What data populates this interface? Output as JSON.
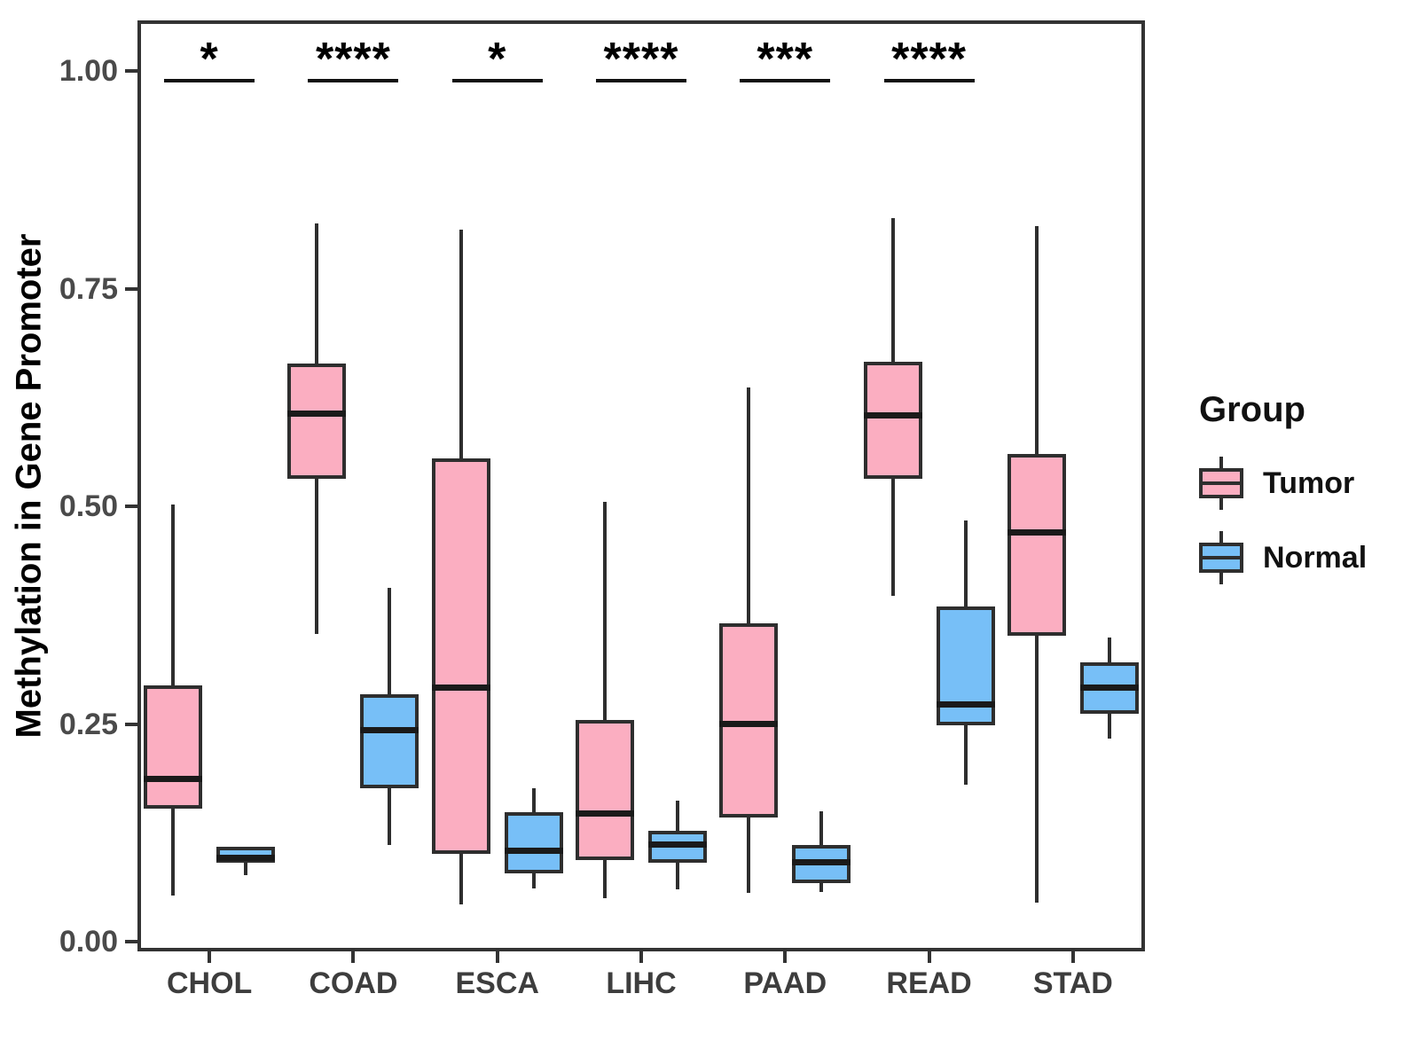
{
  "chart_data": {
    "type": "boxplot",
    "title": "",
    "xlabel": "",
    "ylabel": "Methylation in Gene Promoter",
    "ylim": [
      0,
      1.05
    ],
    "yticks": [
      0,
      0.25,
      0.5,
      0.75,
      1.0
    ],
    "ytick_labels": [
      "0.00",
      "0.25",
      "0.50",
      "0.75",
      "1.00"
    ],
    "categories": [
      "CHOL",
      "COAD",
      "ESCA",
      "LIHC",
      "PAAD",
      "READ",
      "STAD"
    ],
    "grid": "off",
    "panel_border": true,
    "series": [
      {
        "name": "Tumor",
        "color": "#FBAEC1",
        "boxes": [
          {
            "low": 0.053,
            "q1": 0.153,
            "median": 0.187,
            "q3": 0.294,
            "high": 0.502
          },
          {
            "low": 0.353,
            "q1": 0.532,
            "median": 0.606,
            "q3": 0.664,
            "high": 0.825
          },
          {
            "low": 0.043,
            "q1": 0.101,
            "median": 0.292,
            "q3": 0.555,
            "high": 0.818
          },
          {
            "low": 0.05,
            "q1": 0.094,
            "median": 0.147,
            "q3": 0.255,
            "high": 0.505
          },
          {
            "low": 0.056,
            "q1": 0.143,
            "median": 0.25,
            "q3": 0.366,
            "high": 0.636
          },
          {
            "low": 0.397,
            "q1": 0.532,
            "median": 0.604,
            "q3": 0.666,
            "high": 0.831
          },
          {
            "low": 0.045,
            "q1": 0.351,
            "median": 0.47,
            "q3": 0.56,
            "high": 0.822
          }
        ]
      },
      {
        "name": "Normal",
        "color": "#77BFF7",
        "boxes": [
          {
            "low": 0.076,
            "q1": 0.091,
            "median": 0.096,
            "q3": 0.109,
            "high": 0.109
          },
          {
            "low": 0.111,
            "q1": 0.176,
            "median": 0.243,
            "q3": 0.284,
            "high": 0.406
          },
          {
            "low": 0.061,
            "q1": 0.078,
            "median": 0.104,
            "q3": 0.149,
            "high": 0.176
          },
          {
            "low": 0.06,
            "q1": 0.091,
            "median": 0.111,
            "q3": 0.127,
            "high": 0.162
          },
          {
            "low": 0.057,
            "q1": 0.067,
            "median": 0.091,
            "q3": 0.111,
            "high": 0.15
          },
          {
            "low": 0.18,
            "q1": 0.248,
            "median": 0.272,
            "q3": 0.385,
            "high": 0.484
          },
          {
            "low": 0.233,
            "q1": 0.262,
            "median": 0.292,
            "q3": 0.321,
            "high": 0.349
          }
        ]
      }
    ],
    "significance": [
      {
        "category": "CHOL",
        "label": "*"
      },
      {
        "category": "COAD",
        "label": "****"
      },
      {
        "category": "ESCA",
        "label": "*"
      },
      {
        "category": "LIHC",
        "label": "****"
      },
      {
        "category": "PAAD",
        "label": "***"
      },
      {
        "category": "READ",
        "label": "****"
      },
      {
        "category": "STAD",
        "label": ""
      }
    ],
    "legend": {
      "title": "Group",
      "position": "right",
      "entries": [
        "Tumor",
        "Normal"
      ]
    }
  },
  "colors": {
    "tumor_fill": "#FBAEC1",
    "normal_fill": "#77BFF7",
    "box_border": "#2e2e2e",
    "median_line": "#1a1a1a",
    "axis_line": "#333333",
    "tick_label": "#4a4a4a",
    "category_label": "#3d3d3d",
    "text": "#111111"
  }
}
